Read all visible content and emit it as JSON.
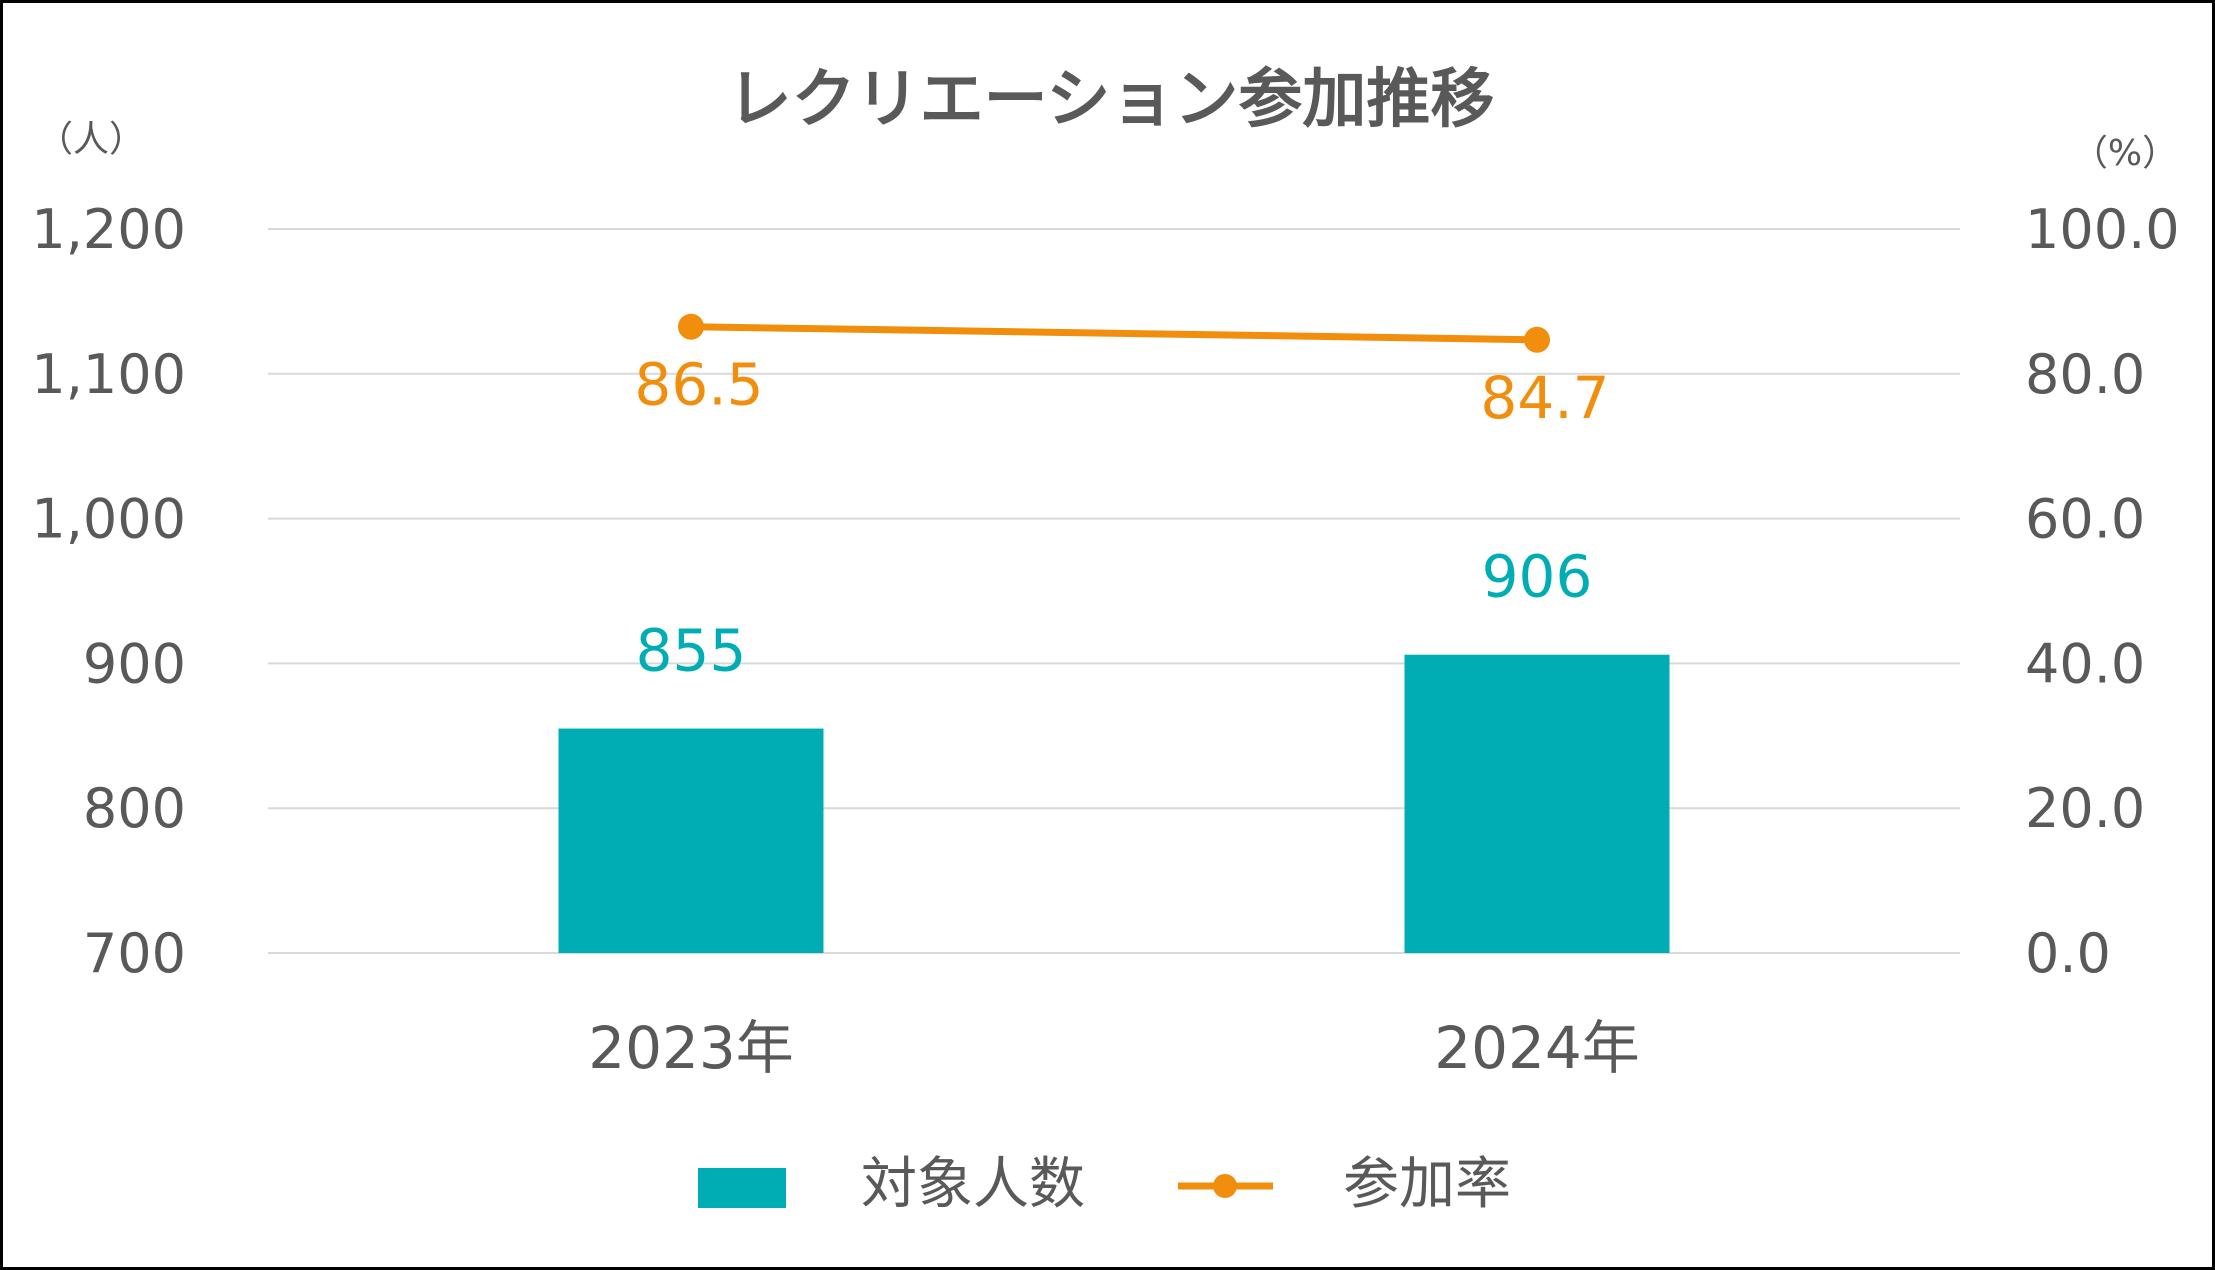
{
  "chart_data": {
    "type": "bar",
    "title": "レクリエーション参加推移",
    "categories": [
      "2023年",
      "2024年"
    ],
    "y_left": {
      "unit_label": "（人）",
      "min": 700,
      "max": 1200,
      "step": 100,
      "tick_labels": [
        "700",
        "800",
        "900",
        "1,000",
        "1,100",
        "1,200"
      ]
    },
    "y_right": {
      "unit_label": "（%）",
      "min": 0,
      "max": 100,
      "step": 20,
      "tick_labels": [
        "0.0",
        "20.0",
        "40.0",
        "60.0",
        "80.0",
        "100.0"
      ]
    },
    "series": [
      {
        "name": "対象人数",
        "type": "bar",
        "axis": "left",
        "values": [
          855,
          906
        ],
        "value_labels": [
          "855",
          "906"
        ],
        "color": "#00ADB5"
      },
      {
        "name": "参加率",
        "type": "line",
        "axis": "right",
        "values": [
          86.5,
          84.7
        ],
        "value_labels": [
          "86.5",
          "84.7"
        ],
        "color": "#F28E0D"
      }
    ],
    "grid": true,
    "legend_position": "bottom",
    "gridline_color": "#D9D9D9",
    "axis_text_color": "#595959"
  }
}
